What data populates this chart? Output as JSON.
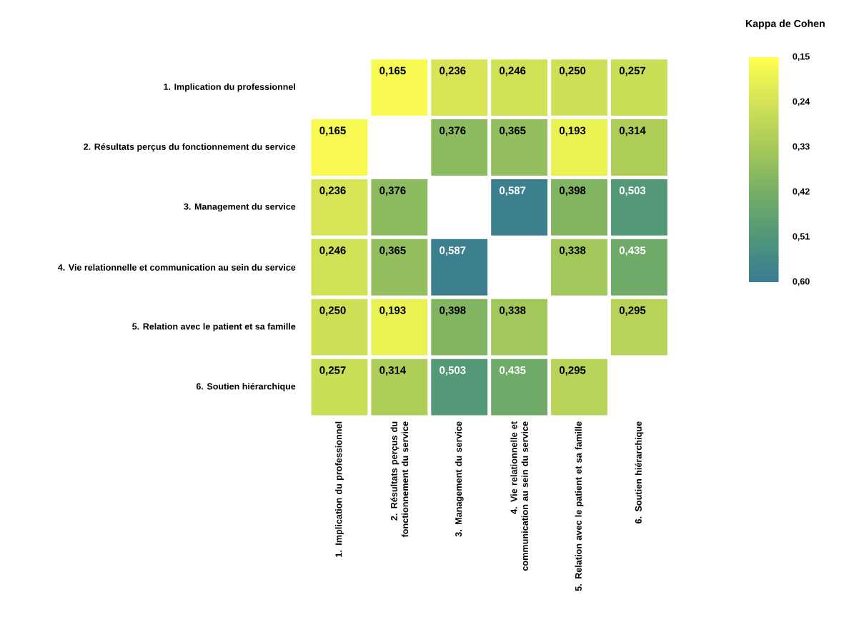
{
  "chart_data": {
    "type": "heatmap",
    "clabel": "Kappa de Cohen",
    "categories": [
      "1. Implication du professionnel",
      "2. Résultats perçus du fonctionnement du service",
      "3. Management du service",
      "4. Vie relationnelle et communication au sein du service",
      "5. Relation avec le patient et sa famille",
      "6. Soutien hiérarchique"
    ],
    "y_categories": [
      "1. Implication du professionnel",
      "2. Résultats perçus du fonctionnement du service",
      "3. Management du service",
      "4. Vie relationnelle et communication au sein du service",
      "5. Relation avec le patient et sa famille",
      "6. Soutien hiérarchique"
    ],
    "cells": [
      [
        null,
        0.165,
        0.236,
        0.246,
        0.25,
        0.257
      ],
      [
        0.165,
        null,
        0.376,
        0.365,
        0.193,
        0.314
      ],
      [
        0.236,
        0.376,
        null,
        0.587,
        0.398,
        0.503
      ],
      [
        0.246,
        0.365,
        0.587,
        null,
        0.338,
        0.435
      ],
      [
        0.25,
        0.193,
        0.398,
        0.338,
        null,
        0.295
      ],
      [
        0.257,
        0.314,
        0.503,
        0.435,
        0.295,
        null
      ]
    ],
    "cell_labels": [
      [
        null,
        "0,165",
        "0,236",
        "0,246",
        "0,250",
        "0,257"
      ],
      [
        "0,165",
        null,
        "0,376",
        "0,365",
        "0,193",
        "0,314"
      ],
      [
        "0,236",
        "0,376",
        null,
        "0,587",
        "0,398",
        "0,503"
      ],
      [
        "0,246",
        "0,365",
        "0,587",
        null,
        "0,338",
        "0,435"
      ],
      [
        "0,250",
        "0,193",
        "0,398",
        "0,338",
        null,
        "0,295"
      ],
      [
        "0,257",
        "0,314",
        "0,503",
        "0,435",
        "0,295",
        null
      ]
    ],
    "clim": [
      0.15,
      0.6
    ],
    "cticks": [
      {
        "value": 0.15,
        "label": "0,15"
      },
      {
        "value": 0.24,
        "label": "0,24"
      },
      {
        "value": 0.33,
        "label": "0,33"
      },
      {
        "value": 0.42,
        "label": "0,42"
      },
      {
        "value": 0.51,
        "label": "0,51"
      },
      {
        "value": 0.6,
        "label": "0,60"
      }
    ]
  }
}
